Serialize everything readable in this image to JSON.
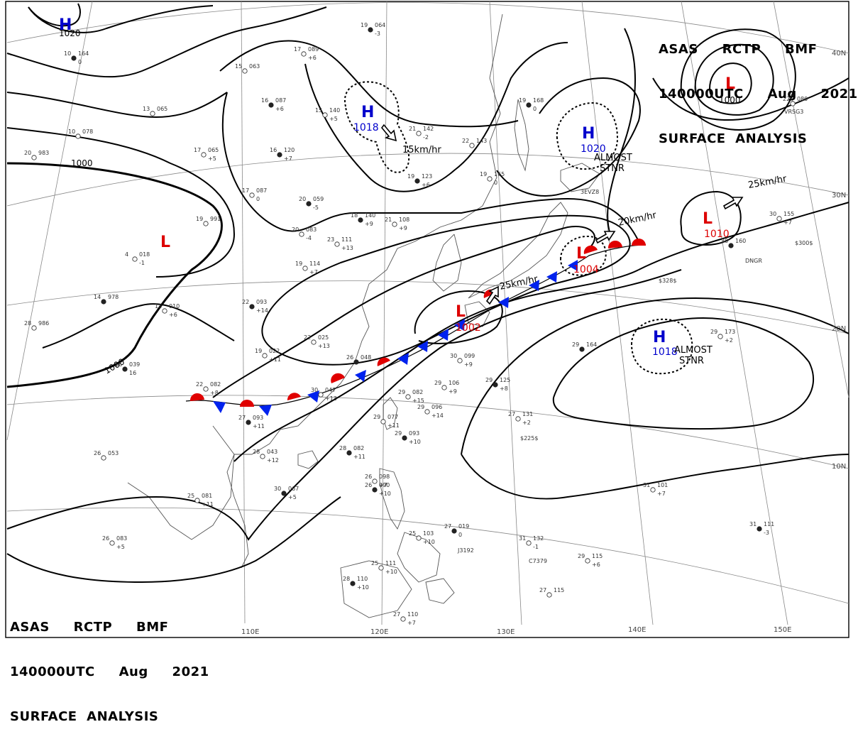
{
  "header": {
    "line1": "ASAS     RCTP     BMF",
    "line2": "140000UTC     Aug     2021",
    "line3": "SURFACE  ANALYSIS"
  },
  "footer": {
    "line1": "ASAS     RCTP     BMF",
    "line2": "140000UTC     Aug     2021",
    "line3": "SURFACE  ANALYSIS"
  },
  "colors": {
    "high": "#0000cc",
    "low": "#dd0000",
    "isobar": "#000000",
    "coast": "#555555",
    "grid": "#888888"
  },
  "grid": {
    "lon_labels": [
      "110E",
      "120E",
      "130E",
      "140E",
      "150E"
    ],
    "lat_labels": [
      "40N",
      "30N",
      "20N",
      "10N"
    ]
  },
  "isobar_labels": [
    "1000",
    "1000",
    "1020"
  ],
  "pressure_centers": [
    {
      "type": "H",
      "value": "1020",
      "region": "northwest"
    },
    {
      "type": "H",
      "value": "1018",
      "region": "mongolia"
    },
    {
      "type": "H",
      "value": "1020",
      "region": "japan-sea",
      "note1": "ALMOST",
      "note2": "STNR"
    },
    {
      "type": "L",
      "value": "1000",
      "region": "northeast"
    },
    {
      "type": "L",
      "value": "",
      "region": "tibet"
    },
    {
      "type": "L",
      "value": "1010",
      "region": "pacific"
    },
    {
      "type": "L",
      "value": "1004",
      "region": "japan"
    },
    {
      "type": "L",
      "value": "1002",
      "region": "east-china-sea"
    },
    {
      "type": "H",
      "value": "1018",
      "region": "western-pacific",
      "note1": "ALMOST",
      "note2": "STNR"
    }
  ],
  "movements": [
    "15km/hr",
    "25km/hr",
    "20km/hr",
    "25km/hr"
  ],
  "stations": [
    {
      "t": "19",
      "p": "064",
      "d": "-3"
    },
    {
      "t": "17",
      "p": "089",
      "d": "+6"
    },
    {
      "t": "15",
      "p": "063",
      "d": ""
    },
    {
      "t": "16",
      "p": "087",
      "d": "+6"
    },
    {
      "t": "15",
      "p": "140",
      "d": "+5"
    },
    {
      "t": "13",
      "p": "065",
      "d": ""
    },
    {
      "t": "16",
      "p": "120",
      "d": "+7"
    },
    {
      "t": "17",
      "p": "065",
      "d": "+5"
    },
    {
      "t": "17",
      "p": "087",
      "d": "0"
    },
    {
      "t": "20",
      "p": "059",
      "d": "-5"
    },
    {
      "t": "20",
      "p": "083",
      "d": "-4"
    },
    {
      "t": "23",
      "p": "111",
      "d": "+13"
    },
    {
      "t": "18",
      "p": "140",
      "d": "+9"
    },
    {
      "t": "21",
      "p": "108",
      "d": "+9"
    },
    {
      "t": "19",
      "p": "114",
      "d": "+7"
    },
    {
      "t": "22",
      "p": "093",
      "d": "+14"
    },
    {
      "t": "22",
      "p": "025",
      "d": "+13"
    },
    {
      "t": "19",
      "p": "022",
      "d": "+11"
    },
    {
      "t": "26",
      "p": "048",
      "d": ""
    },
    {
      "t": "30",
      "p": "047",
      "d": "+13"
    },
    {
      "t": "22",
      "p": "082",
      "d": "+8"
    },
    {
      "t": "27",
      "p": "093",
      "d": "+11"
    },
    {
      "t": "28",
      "p": "043",
      "d": "+12"
    },
    {
      "t": "26",
      "p": "053",
      "d": ""
    },
    {
      "t": "30",
      "p": "067",
      "d": "+5"
    },
    {
      "t": "25",
      "p": "081",
      "d": "+11"
    },
    {
      "t": "26",
      "p": "083",
      "d": "+5"
    },
    {
      "t": "28",
      "p": "082",
      "d": "+11"
    },
    {
      "t": "29",
      "p": "082",
      "d": "+15"
    },
    {
      "t": "29",
      "p": "077",
      "d": "+11"
    },
    {
      "t": "29",
      "p": "093",
      "d": "+10"
    },
    {
      "t": "29",
      "p": "096",
      "d": "+14"
    },
    {
      "t": "29",
      "p": "106",
      "d": "+9"
    },
    {
      "t": "29",
      "p": "125",
      "d": "+8"
    },
    {
      "t": "30",
      "p": "099",
      "d": "+9"
    },
    {
      "t": "27",
      "p": "131",
      "d": "+2"
    },
    {
      "t": "29",
      "p": "164",
      "d": ""
    },
    {
      "t": "29",
      "p": "173",
      "d": "+2"
    },
    {
      "t": "31",
      "p": "101",
      "d": "+7"
    },
    {
      "t": "31",
      "p": "111",
      "d": "-3"
    },
    {
      "t": "31",
      "p": "132",
      "d": "-1"
    },
    {
      "t": "29",
      "p": "115",
      "d": "+6"
    },
    {
      "t": "27",
      "p": "019",
      "d": "0"
    },
    {
      "t": "25",
      "p": "103",
      "d": "+10"
    },
    {
      "t": "25",
      "p": "111",
      "d": "+10"
    },
    {
      "t": "28",
      "p": "110",
      "d": "+10"
    },
    {
      "t": "27",
      "p": "110",
      "d": "+7"
    },
    {
      "t": "27",
      "p": "115",
      "d": ""
    },
    {
      "t": "26",
      "p": "090",
      "d": "+10"
    },
    {
      "t": "26",
      "p": "098",
      "d": "+7"
    },
    {
      "t": "22",
      "p": "080",
      "d": ""
    },
    {
      "t": "30",
      "p": "160",
      "d": ""
    },
    {
      "t": "30",
      "p": "155",
      "d": "+7"
    },
    {
      "t": "21",
      "p": "142",
      "d": "-2"
    },
    {
      "t": "19",
      "p": "123",
      "d": "+6"
    },
    {
      "t": "19",
      "p": "165",
      "d": "0"
    },
    {
      "t": "22",
      "p": "143",
      "d": ""
    },
    {
      "t": "19",
      "p": "168",
      "d": "0"
    },
    {
      "t": "4",
      "p": "018",
      "d": "-1"
    },
    {
      "t": "19",
      "p": "991",
      "d": ""
    },
    {
      "t": "14",
      "p": "978",
      "d": ""
    },
    {
      "t": "13",
      "p": "010",
      "d": "+6"
    },
    {
      "t": "28",
      "p": "986",
      "d": ""
    },
    {
      "t": "16",
      "p": "039",
      "d": "16"
    },
    {
      "t": "20",
      "p": "983",
      "d": ""
    },
    {
      "t": "10",
      "p": "078",
      "d": ""
    },
    {
      "t": "10",
      "p": "164",
      "d": "0"
    }
  ],
  "ship_codes": [
    "VRSG3",
    "3EVZ8",
    "DNGR",
    "J3192",
    "C7379"
  ],
  "ship_pressures": [
    "$328$",
    "$300$",
    "$225$"
  ]
}
